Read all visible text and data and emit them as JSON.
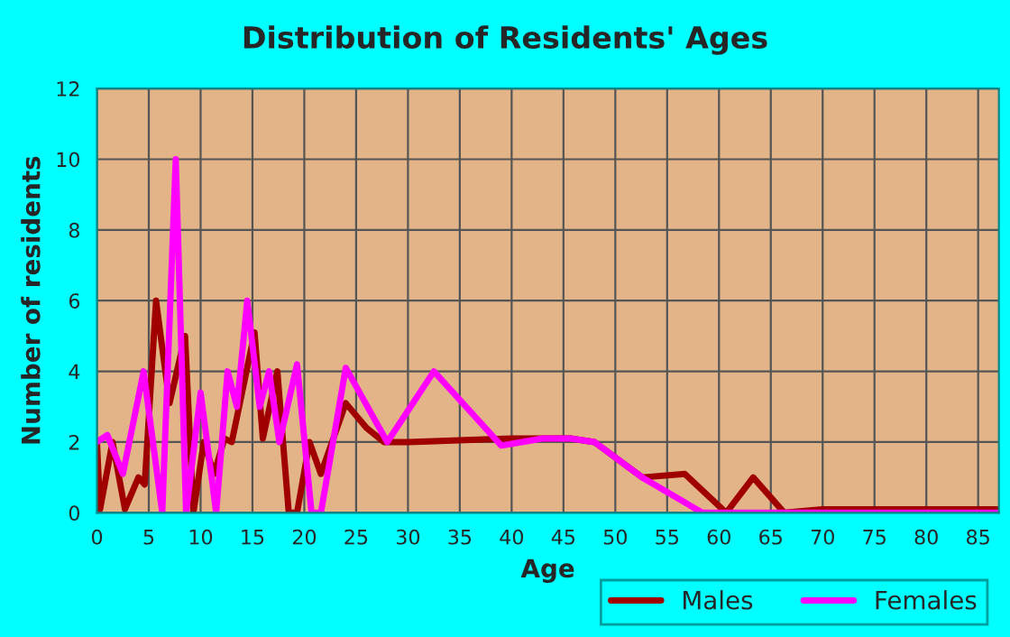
{
  "chart_data": {
    "type": "line",
    "title": "Distribution of Residents' Ages",
    "xlabel": "Age",
    "ylabel": "Number of residents",
    "xlim": [
      0,
      87
    ],
    "xticks": [
      0,
      5,
      10,
      15,
      20,
      25,
      30,
      35,
      40,
      45,
      50,
      55,
      60,
      65,
      70,
      75,
      80,
      85
    ],
    "ylim": [
      0,
      12
    ],
    "yticks": [
      0,
      2,
      4,
      6,
      8,
      10,
      12
    ],
    "grid": true,
    "legend": "bottom right",
    "marker": "none",
    "line_style": "solid",
    "series": [
      {
        "name": "Males",
        "color": "#a00000",
        "x": [
          0,
          0.3,
          1.5,
          2.7,
          4,
          4.6,
          5.7,
          7,
          8.5,
          9.3,
          10.3,
          11.3,
          12.3,
          13,
          15.2,
          16,
          17.4,
          18.5,
          19.3,
          20.5,
          21.6,
          24,
          26,
          27.7,
          30,
          40,
          45.7,
          48,
          52.6,
          56.7,
          60.7,
          63.3,
          66.3,
          70,
          87
        ],
        "values": [
          2,
          0.1,
          2,
          0.1,
          1,
          0.8,
          6,
          3.1,
          5,
          0,
          2,
          1.1,
          2.1,
          2,
          5.1,
          2.1,
          4,
          0,
          0,
          2,
          1.1,
          3.1,
          2.4,
          2,
          2,
          2.1,
          2.1,
          2,
          1,
          1.1,
          0,
          1,
          0,
          0.1,
          0.1
        ]
      },
      {
        "name": "Females",
        "color": "#ff00ff",
        "x": [
          0,
          1,
          2.5,
          4.5,
          6.3,
          7.6,
          8.6,
          10,
          11.5,
          12.6,
          13.5,
          14.5,
          15.7,
          16.6,
          17.6,
          19.3,
          20.7,
          21.6,
          24,
          28,
          32.5,
          39,
          43,
          45.7,
          48,
          52.6,
          58.4,
          87
        ],
        "values": [
          2,
          2.2,
          1.1,
          4,
          0,
          10,
          0,
          3.4,
          0,
          4,
          3,
          6,
          3,
          4,
          2,
          4.2,
          0,
          0,
          4.1,
          2,
          4,
          1.9,
          2.1,
          2.1,
          2,
          1,
          0,
          0
        ]
      }
    ]
  }
}
